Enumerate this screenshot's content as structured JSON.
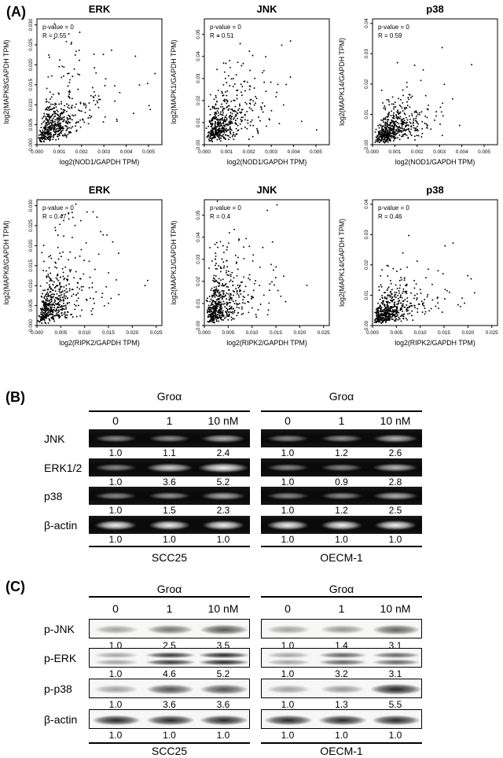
{
  "panel_a": {
    "label": "(A)"
  },
  "chart_data": [
    {
      "type": "scatter",
      "id": "erk-nod1",
      "title": "ERK",
      "xlabel": "log2(NOD1/GAPDH TPM)",
      "ylabel": "log2(MAPK8/GAPDH TPM)",
      "annotation": [
        "p-value = 0",
        "R = 0.55"
      ],
      "p_value": "0",
      "r_value": "0.55",
      "xlim": [
        0,
        0.0056
      ],
      "ylim": [
        0,
        0.0315
      ],
      "grid": false,
      "legend": "none",
      "xticks": [
        "0.000",
        "0.001",
        "0.002",
        "0.003",
        "0.004",
        "0.005"
      ],
      "yticks": [
        "0.000",
        "0.005",
        "0.010",
        "0.015",
        "0.020",
        "0.025",
        "0.030"
      ],
      "cloud": {
        "n": 520,
        "seed": 1,
        "x_peak": 0.00085,
        "y_peak": 0.0055,
        "spread": 0.62,
        "correlation": 0.55
      }
    },
    {
      "type": "scatter",
      "id": "jnk-nod1",
      "title": "JNK",
      "xlabel": "log2(NOD1/GAPDH TPM)",
      "ylabel": "log2(MAPK1/GAPDH TPM)",
      "annotation": [
        "p-value = 0",
        "R = 0.51"
      ],
      "p_value": "0",
      "r_value": "0.51",
      "xlim": [
        0,
        0.0056
      ],
      "ylim": [
        0,
        0.057
      ],
      "grid": false,
      "legend": "none",
      "xticks": [
        "0.000",
        "0.001",
        "0.002",
        "0.003",
        "0.004",
        "0.005"
      ],
      "yticks": [
        "0.00",
        "0.01",
        "0.02",
        "0.03",
        "0.04",
        "0.05"
      ],
      "cloud": {
        "n": 520,
        "seed": 2,
        "x_peak": 0.00085,
        "y_peak": 0.0095,
        "spread": 0.6,
        "correlation": 0.51
      }
    },
    {
      "type": "scatter",
      "id": "p38-nod1",
      "title": "p38",
      "xlabel": "log2(NOD1/GAPDH TPM)",
      "ylabel": "log2(MAPK14/GAPDH TPM)",
      "annotation": [
        "p-value = 0",
        "R = 0.59"
      ],
      "p_value": "0",
      "r_value": "0.59",
      "xlim": [
        0,
        0.0056
      ],
      "ylim": [
        0,
        0.0415
      ],
      "grid": false,
      "legend": "none",
      "xticks": [
        "0.000",
        "0.001",
        "0.002",
        "0.003",
        "0.004",
        "0.005"
      ],
      "yticks": [
        "0.00",
        "0.01",
        "0.02",
        "0.03",
        "0.04"
      ],
      "cloud": {
        "n": 520,
        "seed": 3,
        "x_peak": 0.00085,
        "y_peak": 0.005,
        "spread": 0.58,
        "correlation": 0.59
      }
    },
    {
      "type": "scatter",
      "id": "erk-ripk2",
      "title": "ERK",
      "xlabel": "log2(RIPK2/GAPDH TPM)",
      "ylabel": "log2(MAPK8/GAPDH TPM)",
      "annotation": [
        "p-value = 0",
        "R = 0.47"
      ],
      "p_value": "0",
      "r_value": "0.47",
      "xlim": [
        0,
        0.0262
      ],
      "ylim": [
        0,
        0.0315
      ],
      "grid": false,
      "legend": "none",
      "xticks": [
        "0.000",
        "0.005",
        "0.010",
        "0.015",
        "0.020",
        "0.025"
      ],
      "yticks": [
        "0.000",
        "0.005",
        "0.010",
        "0.015",
        "0.020",
        "0.025",
        "0.030"
      ],
      "cloud": {
        "n": 520,
        "seed": 4,
        "x_peak": 0.0035,
        "y_peak": 0.0055,
        "spread": 0.62,
        "correlation": 0.47
      }
    },
    {
      "type": "scatter",
      "id": "jnk-ripk2",
      "title": "JNK",
      "xlabel": "log2(RIPK2/GAPDH TPM)",
      "ylabel": "log2(MAPK1/GAPDH TPM)",
      "annotation": [
        "p-value = 0",
        "R = 0.4"
      ],
      "p_value": "0",
      "r_value": "0.4",
      "xlim": [
        0,
        0.0262
      ],
      "ylim": [
        0,
        0.057
      ],
      "grid": false,
      "legend": "none",
      "xticks": [
        "0.000",
        "0.005",
        "0.010",
        "0.015",
        "0.020",
        "0.025"
      ],
      "yticks": [
        "0.00",
        "0.01",
        "0.02",
        "0.03",
        "0.04",
        "0.05"
      ],
      "cloud": {
        "n": 520,
        "seed": 5,
        "x_peak": 0.0035,
        "y_peak": 0.0095,
        "spread": 0.6,
        "correlation": 0.4
      }
    },
    {
      "type": "scatter",
      "id": "p38-ripk2",
      "title": "p38",
      "xlabel": "log2(RIPK2/GAPDH TPM)",
      "ylabel": "log2(MAPK14/GAPDH TPM)",
      "annotation": [
        "p-value = 0",
        "R = 0.46"
      ],
      "p_value": "0",
      "r_value": "0.46",
      "xlim": [
        0,
        0.0262
      ],
      "ylim": [
        0,
        0.0415
      ],
      "grid": false,
      "legend": "none",
      "xticks": [
        "0.000",
        "0.005",
        "0.010",
        "0.015",
        "0.020",
        "0.025"
      ],
      "yticks": [
        "0.00",
        "0.01",
        "0.02",
        "0.03",
        "0.04"
      ],
      "cloud": {
        "n": 520,
        "seed": 6,
        "x_peak": 0.0035,
        "y_peak": 0.005,
        "spread": 0.6,
        "correlation": 0.46
      }
    }
  ],
  "blot_panels": [
    {
      "label": "(B)",
      "treatment": "Groα",
      "doses": [
        "0",
        "1",
        "10 nM"
      ],
      "assay_style": "gel-dark",
      "row_labels": [
        "JNK",
        "ERK1/2",
        "p38",
        "β-actin"
      ],
      "groups": [
        {
          "cell_line": "SCC25",
          "rows": [
            {
              "target": "JNK",
              "values": [
                "1.0",
                "1.1",
                "2.4"
              ]
            },
            {
              "target": "ERK1/2",
              "values": [
                "1.0",
                "3.6",
                "5.2"
              ]
            },
            {
              "target": "p38",
              "values": [
                "1.0",
                "1.5",
                "2.3"
              ]
            },
            {
              "target": "β-actin",
              "values": [
                "1.0",
                "1.0",
                "1.0"
              ]
            }
          ]
        },
        {
          "cell_line": "OECM-1",
          "rows": [
            {
              "target": "JNK",
              "values": [
                "1.0",
                "1.2",
                "2.6"
              ]
            },
            {
              "target": "ERK1/2",
              "values": [
                "1.0",
                "0.9",
                "2.8"
              ]
            },
            {
              "target": "p38",
              "values": [
                "1.0",
                "1.2",
                "2.5"
              ]
            },
            {
              "target": "β-actin",
              "values": [
                "1.0",
                "1.0",
                "1.0"
              ]
            }
          ]
        }
      ]
    },
    {
      "label": "(C)",
      "treatment": "Groα",
      "doses": [
        "0",
        "1",
        "10 nM"
      ],
      "assay_style": "blot-light",
      "row_labels": [
        "p-JNK",
        "p-ERK",
        "p-p38",
        "β-actin"
      ],
      "groups": [
        {
          "cell_line": "SCC25",
          "rows": [
            {
              "target": "p-JNK",
              "values": [
                "1.0",
                "2.5",
                "3.5"
              ]
            },
            {
              "target": "p-ERK",
              "values": [
                "1.0",
                "4.6",
                "5.2"
              ],
              "doublet": true
            },
            {
              "target": "p-p38",
              "values": [
                "1.0",
                "3.6",
                "3.6"
              ]
            },
            {
              "target": "β-actin",
              "values": [
                "1.0",
                "1.0",
                "1.0"
              ]
            }
          ]
        },
        {
          "cell_line": "OECM-1",
          "rows": [
            {
              "target": "p-JNK",
              "values": [
                "1.0",
                "1.4",
                "3.1"
              ]
            },
            {
              "target": "p-ERK",
              "values": [
                "1.0",
                "3.2",
                "3.1"
              ],
              "doublet": true
            },
            {
              "target": "p-p38",
              "values": [
                "1.0",
                "1.3",
                "5.5"
              ]
            },
            {
              "target": "β-actin",
              "values": [
                "1.0",
                "1.0",
                "1.0"
              ]
            }
          ]
        }
      ]
    }
  ]
}
